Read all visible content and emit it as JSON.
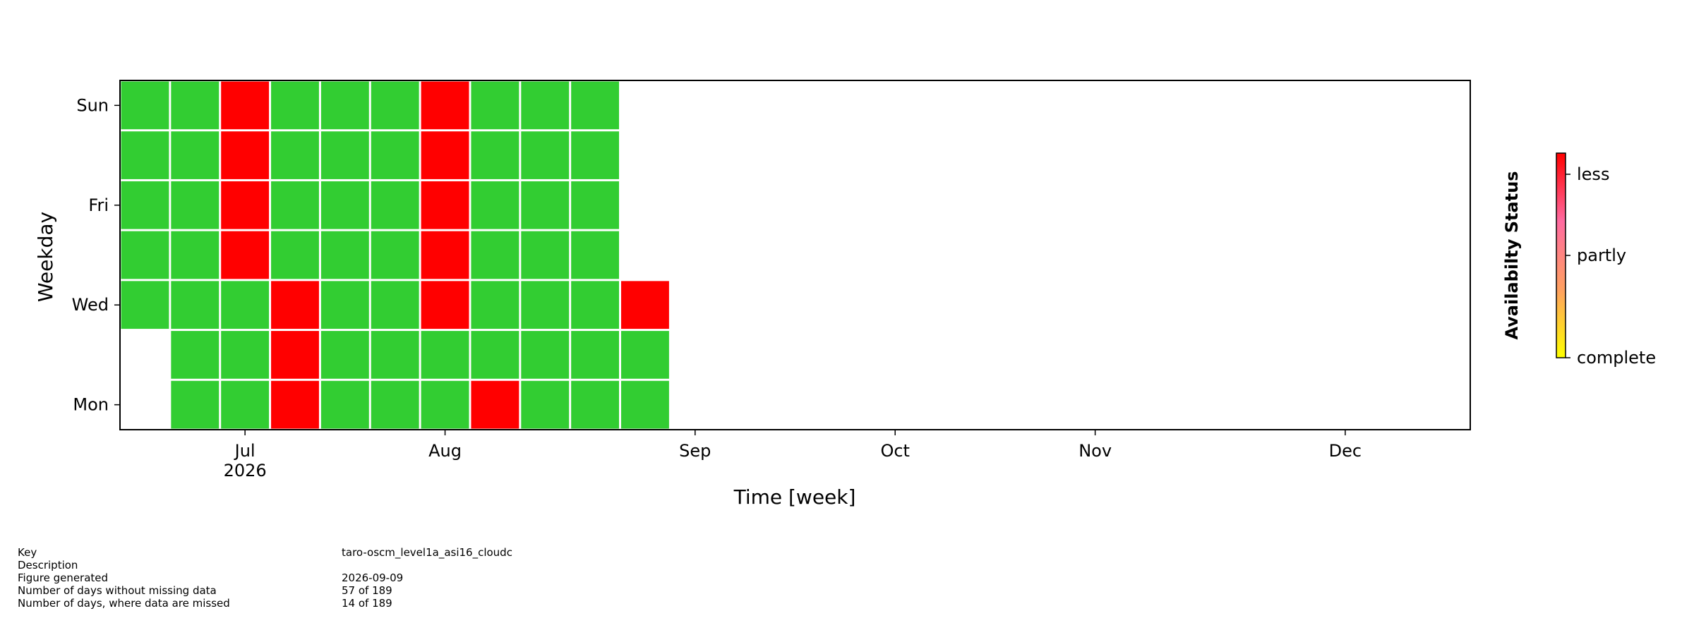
{
  "chart_data": {
    "type": "heatmap",
    "x_label": "Time [week]",
    "y_label": "Weekday",
    "x": [
      0,
      1,
      2,
      3,
      4,
      5,
      6,
      7,
      8,
      9,
      10
    ],
    "xlim": [
      -0.5,
      26.5
    ],
    "xticks": [
      {
        "value": 2,
        "label": "Jul"
      },
      {
        "value": 6,
        "label": "Aug"
      },
      {
        "value": 11,
        "label": "Sep"
      },
      {
        "value": 15,
        "label": "Oct"
      },
      {
        "value": 19,
        "label": "Nov"
      },
      {
        "value": 24,
        "label": "Dec"
      }
    ],
    "xtick_year": "2026",
    "categories": [
      "Mon",
      null,
      "Wed",
      null,
      "Fri",
      null,
      "Sun"
    ],
    "values": [
      [
        null,
        0,
        0,
        1,
        0,
        0,
        0,
        1,
        0,
        0,
        0
      ],
      [
        null,
        0,
        0,
        1,
        0,
        0,
        0,
        0,
        0,
        0,
        0
      ],
      [
        0,
        0,
        0,
        1,
        0,
        0,
        1,
        0,
        0,
        0,
        1
      ],
      [
        0,
        0,
        1,
        0,
        0,
        0,
        1,
        0,
        0,
        0,
        null
      ],
      [
        0,
        0,
        1,
        0,
        0,
        0,
        1,
        0,
        0,
        0,
        null
      ],
      [
        0,
        0,
        1,
        0,
        0,
        0,
        1,
        0,
        0,
        0,
        null
      ],
      [
        0,
        0,
        1,
        0,
        0,
        0,
        1,
        0,
        0,
        0,
        null
      ]
    ],
    "cell_colors": [
      "#32cd32",
      "#ff0000"
    ],
    "colorbar": {
      "label": "Availabilty Status",
      "lim": [
        0,
        1
      ],
      "ticks": [
        {
          "value": 0,
          "label": "complete"
        },
        {
          "value": 0.5,
          "label": "partly"
        },
        {
          "value": 1,
          "label": "less"
        }
      ],
      "colors": [
        "#ffff00",
        "#ffa060",
        "#ff6aa0",
        "#ff0000"
      ]
    }
  },
  "info": [
    [
      "Key",
      "taro-oscm_level1a_asi16_cloudc"
    ],
    [
      "Description"
    ],
    [
      "Figure generated",
      "2026-09-09"
    ],
    [
      "Number of days without missing data",
      "57 of 189"
    ],
    [
      "Number of days, where data are missed",
      "14 of 189"
    ]
  ]
}
